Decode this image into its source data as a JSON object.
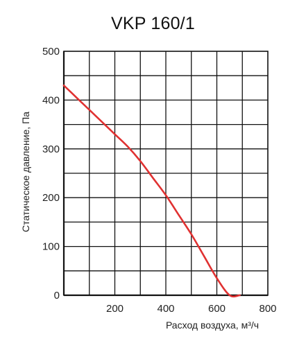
{
  "chart_data": {
    "type": "line",
    "title": "VKP 160/1",
    "xlabel": "Расход воздуха, м³/ч",
    "ylabel": "Статическое давление, Па",
    "xlim": [
      0,
      800
    ],
    "ylim": [
      0,
      500
    ],
    "x_ticks": [
      200,
      400,
      600,
      800
    ],
    "x_tick_labels": [
      "200",
      "400",
      "600",
      "800"
    ],
    "y_ticks": [
      0,
      100,
      200,
      300,
      400,
      500
    ],
    "y_tick_labels": [
      "0",
      "100",
      "200",
      "300",
      "400",
      "500"
    ],
    "grid": true,
    "grid_step_x": 100,
    "grid_step_y": 50,
    "series": [
      {
        "color": "#e03131",
        "x": [
          0,
          50,
          100,
          150,
          200,
          250,
          300,
          350,
          400,
          450,
          500,
          550,
          600,
          650,
          690
        ],
        "y": [
          430,
          405,
          380,
          355,
          330,
          305,
          275,
          240,
          205,
          165,
          125,
          80,
          35,
          -5,
          0
        ]
      }
    ]
  }
}
